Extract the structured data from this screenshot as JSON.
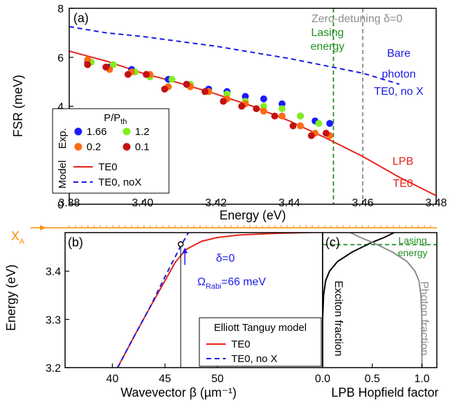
{
  "chart_data": [
    {
      "id": "a",
      "type": "scatter",
      "panel_label": "(a)",
      "xlabel": "Energy (eV)",
      "ylabel": "FSR (meV)",
      "xlim": [
        3.38,
        3.48
      ],
      "ylim": [
        0,
        8
      ],
      "xticks": [
        "3.38",
        "3.40",
        "3.42",
        "3.44",
        "3.46",
        "3.48"
      ],
      "yticks": [
        "0",
        "2",
        "4",
        "6",
        "8"
      ],
      "legend_title": "P/P",
      "legend_title_sub": "th",
      "legend_group_exp": "Exp.",
      "legend_group_model": "Model",
      "series": [
        {
          "name": "1.66",
          "color": "#1a1aff",
          "kind": "points",
          "x": [
            3.385,
            3.391,
            3.397,
            3.401,
            3.407,
            3.412,
            3.418,
            3.423,
            3.428,
            3.433,
            3.438,
            3.443,
            3.447,
            3.451
          ],
          "y": [
            5.8,
            5.6,
            5.5,
            5.3,
            5.1,
            4.9,
            4.7,
            4.6,
            4.4,
            4.3,
            4.1,
            3.6,
            3.4,
            3.3
          ]
        },
        {
          "name": "1.2",
          "color": "#7fef1f",
          "kind": "points",
          "x": [
            3.386,
            3.392,
            3.398,
            3.402,
            3.408,
            3.413,
            3.418,
            3.423,
            3.428,
            3.433,
            3.438,
            3.443,
            3.448
          ],
          "y": [
            5.8,
            5.7,
            5.4,
            5.2,
            5.1,
            4.9,
            4.6,
            4.5,
            4.2,
            4.0,
            3.9,
            3.6,
            3.3
          ]
        },
        {
          "name": "0.2",
          "color": "#ff6a12",
          "kind": "points",
          "x": [
            3.385,
            3.391,
            3.397,
            3.402,
            3.407,
            3.413,
            3.418,
            3.423,
            3.428,
            3.433,
            3.438,
            3.443,
            3.447,
            3.451
          ],
          "y": [
            5.9,
            5.5,
            5.4,
            5.3,
            4.8,
            4.8,
            4.6,
            4.3,
            4.1,
            3.8,
            3.6,
            3.2,
            2.9,
            2.8
          ]
        },
        {
          "name": "0.1",
          "color": "#c41212",
          "kind": "points",
          "x": [
            3.385,
            3.39,
            3.396,
            3.401,
            3.406,
            3.412,
            3.417,
            3.422,
            3.427,
            3.431,
            3.436,
            3.441,
            3.446,
            3.45
          ],
          "y": [
            5.7,
            5.6,
            5.3,
            5.3,
            4.7,
            4.9,
            4.6,
            4.2,
            4.0,
            3.9,
            3.6,
            3.2,
            2.8,
            2.9
          ]
        },
        {
          "name": "TE0",
          "color": "#e8231a",
          "kind": "line",
          "dash": "",
          "x": [
            3.38,
            3.39,
            3.4,
            3.41,
            3.42,
            3.43,
            3.44,
            3.45,
            3.46,
            3.47,
            3.48
          ],
          "y": [
            6.25,
            5.85,
            5.35,
            4.95,
            4.5,
            4.0,
            3.4,
            2.7,
            1.95,
            1.1,
            0.35
          ]
        },
        {
          "name": "TE0, noX",
          "color": "#1a1ae6",
          "kind": "line",
          "dash": "7,5",
          "x": [
            3.38,
            3.39,
            3.4,
            3.41,
            3.42,
            3.43,
            3.44,
            3.45,
            3.46,
            3.47
          ],
          "y": [
            7.25,
            7.0,
            6.85,
            6.65,
            6.45,
            6.2,
            5.95,
            5.65,
            5.35,
            4.9
          ]
        }
      ],
      "vlines": [
        {
          "x": 3.452,
          "color": "#1f8f1f",
          "label_lines": [
            "Lasing",
            "energy"
          ]
        },
        {
          "x": 3.46,
          "color": "#8c8c8c",
          "label_lines": [
            "Zero-detuning δ=0"
          ]
        }
      ],
      "annotations": {
        "bare_lines": [
          "Bare",
          "photon",
          "TE0, no X"
        ],
        "lpb_lines": [
          "LPB",
          "TE0"
        ]
      }
    },
    {
      "id": "b",
      "type": "line",
      "panel_label": "(b)",
      "xlabel": "Wavevector β (µm⁻¹)",
      "ylabel": "Energy (eV)",
      "xlim": [
        35.5,
        60
      ],
      "ylim": [
        3.2,
        3.48
      ],
      "xticks": [
        "40",
        "45",
        "50"
      ],
      "yticks": [
        "3.2",
        "3.3",
        "3.4"
      ],
      "legend_title": "Elliott Tanguy model",
      "series": [
        {
          "name": "TE0",
          "color": "#e8231a",
          "dash": "",
          "x": [
            40.5,
            42,
            43.5,
            45,
            46,
            47,
            48.5,
            50,
            52,
            55,
            60
          ],
          "y": [
            3.2,
            3.262,
            3.322,
            3.38,
            3.419,
            3.445,
            3.462,
            3.47,
            3.475,
            3.478,
            3.481
          ]
        },
        {
          "name": "TE0, no X",
          "color": "#1a1ae6",
          "dash": "7,5",
          "x": [
            40.5,
            42,
            43.5,
            45,
            46.5,
            47.5
          ],
          "y": [
            3.2,
            3.262,
            3.322,
            3.388,
            3.452,
            3.49
          ]
        }
      ],
      "marker": {
        "x": 46.5,
        "y": 3.456
      },
      "xa_label": "X",
      "xa_sub": "A",
      "xa_energy": 3.49,
      "delta_label": "δ=0",
      "rabi_label": "Ω",
      "rabi_sub": "Rabi",
      "rabi_value": "=66 meV"
    },
    {
      "id": "c",
      "type": "line",
      "panel_label": "(c)",
      "xlabel": "LPB Hopfield factor",
      "xlim": [
        0,
        1.15
      ],
      "ylim": [
        3.2,
        3.48
      ],
      "xticks": [
        "0.0",
        "0.5",
        "1.0"
      ],
      "lasing_energy": 3.455,
      "lasing_lines": [
        "Lasing",
        "energy"
      ],
      "series": [
        {
          "name": "Exciton fraction",
          "color": "#000000",
          "x": [
            0.0,
            0.0,
            0.01,
            0.03,
            0.07,
            0.15,
            0.3,
            0.5,
            0.62,
            0.72
          ],
          "y": [
            3.2,
            3.3,
            3.35,
            3.38,
            3.4,
            3.42,
            3.44,
            3.46,
            3.47,
            3.48
          ]
        },
        {
          "name": "Photon fraction",
          "color": "#8c8c8c",
          "x": [
            1.0,
            1.0,
            0.99,
            0.97,
            0.93,
            0.85,
            0.7,
            0.5,
            0.38,
            0.28
          ],
          "y": [
            3.2,
            3.3,
            3.35,
            3.38,
            3.4,
            3.42,
            3.44,
            3.46,
            3.47,
            3.48
          ]
        }
      ]
    }
  ]
}
